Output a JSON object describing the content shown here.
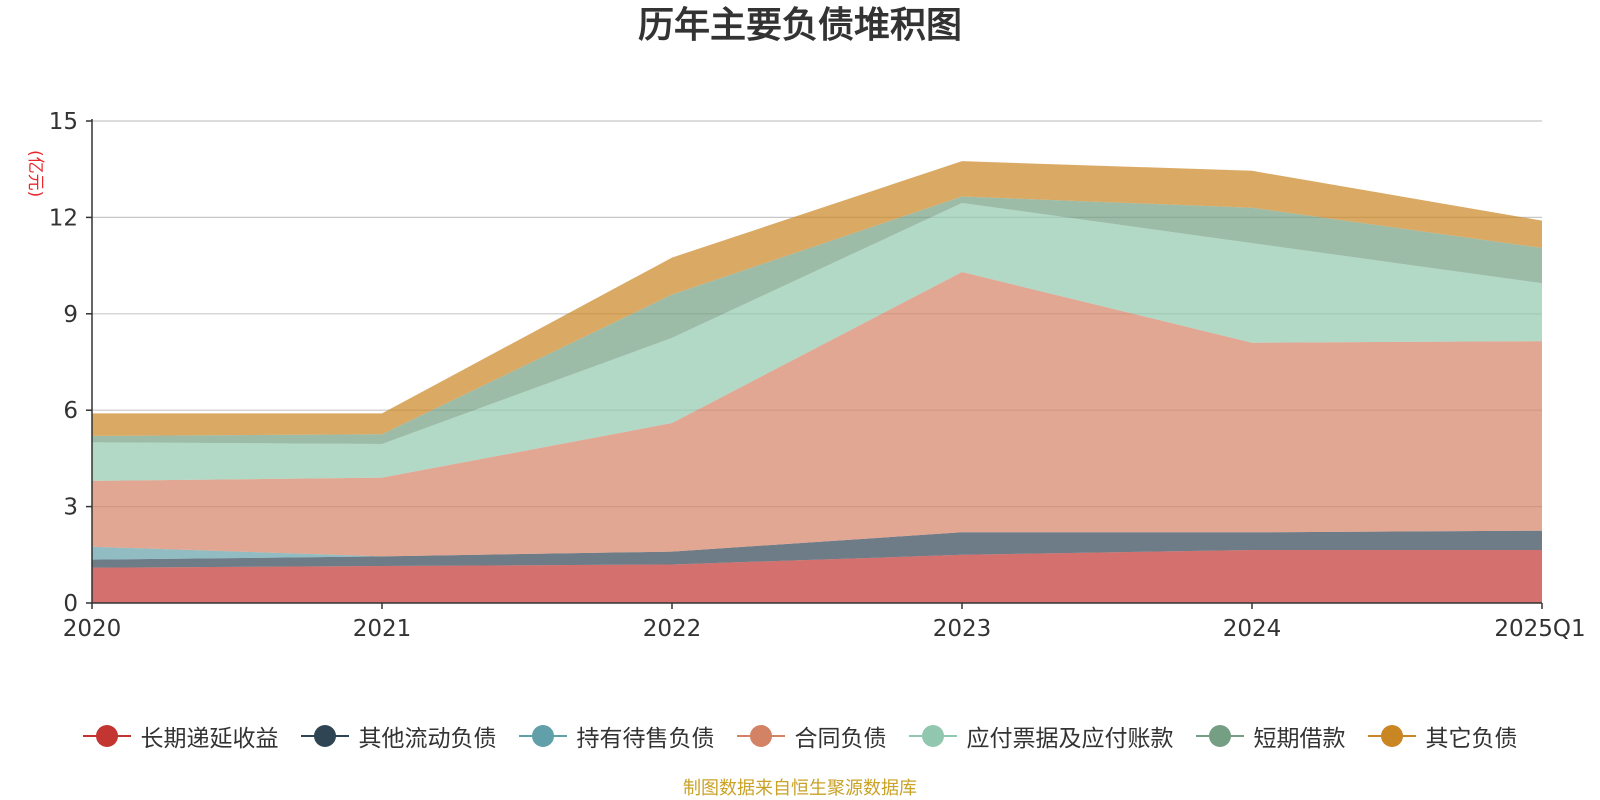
{
  "chart_data": {
    "type": "area",
    "stacked": true,
    "title": "历年主要负债堆积图",
    "ylabel": "(亿元)",
    "ylim": [
      0,
      15
    ],
    "yticks": [
      0,
      3,
      6,
      9,
      12,
      15
    ],
    "categories": [
      "2020",
      "2021",
      "2022",
      "2023",
      "2024",
      "2025Q1"
    ],
    "grid": true,
    "legend_position": "bottom",
    "source": "制图数据来自恒生聚源数据库",
    "series": [
      {
        "name": "长期递延收益",
        "color": "#c23531",
        "values": [
          1.1,
          1.15,
          1.2,
          1.5,
          1.65,
          1.65
        ]
      },
      {
        "name": "其他流动负债",
        "color": "#2f4554",
        "values": [
          0.25,
          0.3,
          0.4,
          0.7,
          0.55,
          0.6
        ]
      },
      {
        "name": "持有待售负债",
        "color": "#61a0a8",
        "values": [
          0.4,
          0.0,
          0.0,
          0.0,
          0.0,
          0.0
        ]
      },
      {
        "name": "合同负债",
        "color": "#d48265",
        "values": [
          2.05,
          2.45,
          4.0,
          8.1,
          5.9,
          5.9
        ]
      },
      {
        "name": "应付票据及应付账款",
        "color": "#91c7ae",
        "values": [
          1.2,
          1.05,
          2.65,
          2.15,
          3.1,
          1.8
        ]
      },
      {
        "name": "短期借款",
        "color": "#749f83",
        "values": [
          0.2,
          0.3,
          1.35,
          0.2,
          1.1,
          1.1
        ]
      },
      {
        "name": "其它负债",
        "color": "#ca8622",
        "values": [
          0.7,
          0.65,
          1.15,
          1.1,
          1.15,
          0.85
        ]
      }
    ]
  }
}
